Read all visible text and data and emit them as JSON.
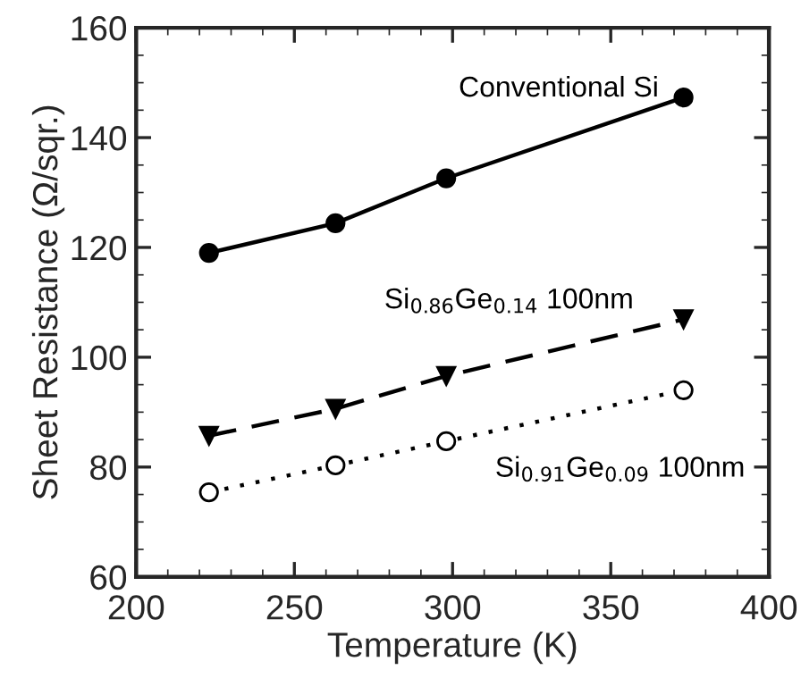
{
  "chart_data": {
    "type": "line",
    "xlabel": "Temperature (K)",
    "ylabel": "Sheet Resistance (Ω/sqr.)",
    "xlim": [
      200,
      400
    ],
    "xticks": [
      200,
      250,
      300,
      350,
      400
    ],
    "ylim": [
      60,
      160
    ],
    "yticks": [
      60,
      80,
      100,
      120,
      140,
      160
    ],
    "grid": false,
    "legend": false,
    "series": [
      {
        "name": "Conventional Si",
        "color": "#000000",
        "marker": "circle",
        "line_style": "solid",
        "x": [
          223,
          263,
          298,
          373
        ],
        "values": [
          119,
          124.4,
          132.6,
          147.3
        ]
      },
      {
        "name": "Si$_{0.86}$Ge$_{0.14}$ 100nm",
        "color": "#000000",
        "marker": "triangle",
        "line_style": "dashed",
        "x": [
          223,
          263,
          298,
          373
        ],
        "values": [
          85.7,
          90.6,
          96.6,
          106.9
        ]
      },
      {
        "name": "Si$_{0.91}$Ge$_{0.09}$ 100nm",
        "color": "#000000",
        "marker": "open circle",
        "line_style": "dotted",
        "x": [
          223,
          263,
          298,
          373
        ],
        "values": [
          75.4,
          80.3,
          84.7,
          94
        ]
      }
    ]
  }
}
